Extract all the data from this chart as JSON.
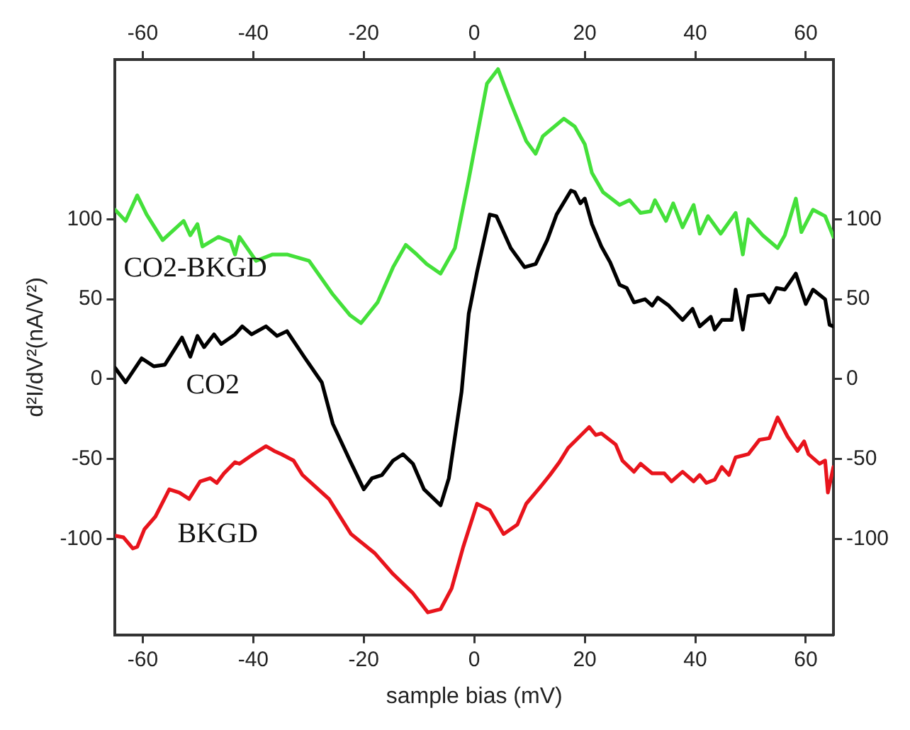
{
  "chart_data": {
    "type": "line",
    "xlabel": "sample bias (mV)",
    "ylabel": "d²I/dV²(nA/V²)",
    "xlim": [
      -65,
      65
    ],
    "xticks": [
      -60,
      -40,
      -20,
      0,
      20,
      40,
      60
    ],
    "x2lim": [
      -65,
      65
    ],
    "x2ticks": [
      -60,
      -40,
      -20,
      0,
      20,
      40,
      60
    ],
    "ylim": [
      -160,
      200
    ],
    "yticks": [
      -100,
      -50,
      0,
      50,
      100
    ],
    "y2lim": [
      -160,
      200
    ],
    "y2ticks": [
      -100,
      -50,
      0,
      50,
      100
    ],
    "grid": false,
    "legend": false,
    "marker": "none",
    "line_style": "solid",
    "series": [
      {
        "name": "CO2-BKGD",
        "color": "#44e03a",
        "x": [
          -65,
          -63.1,
          -61,
          -59.3,
          -56.4,
          -52.6,
          -51.4,
          -50.1,
          -49.2,
          -46.3,
          -44.1,
          -43.3,
          -42.5,
          -39.5,
          -36.5,
          -33.9,
          -29.9,
          -25.6,
          -22.5,
          -20.5,
          -17.5,
          -14.7,
          -12.4,
          -10.4,
          -8.6,
          -6.1,
          -3.5,
          -1,
          2.3,
          4.3,
          6.6,
          9.4,
          11.1,
          12.4,
          16.2,
          18.2,
          20,
          21.3,
          23.3,
          26.3,
          28.1,
          30.1,
          31.9,
          32.7,
          34.7,
          36,
          37.7,
          39.7,
          40.8,
          42.3,
          44.6,
          47.3,
          48.6,
          49.6,
          52.2,
          54.9,
          56.2,
          58.2,
          59.2,
          61.3,
          63.5,
          65
        ],
        "values": [
          106,
          99,
          115,
          103,
          87,
          99,
          90,
          97,
          83,
          89,
          86,
          78,
          89,
          74,
          78,
          78,
          74,
          53,
          40,
          35,
          48,
          70,
          84,
          78,
          72,
          66,
          82,
          125,
          185,
          194,
          173,
          149,
          141,
          152,
          163,
          158,
          147,
          129,
          117,
          109,
          112,
          104,
          105,
          112,
          99,
          110,
          95,
          109,
          91,
          102,
          91,
          104,
          78,
          100,
          90,
          82,
          90,
          113,
          92,
          106,
          102,
          89
        ]
      },
      {
        "name": "CO2",
        "color": "#000000",
        "x": [
          -65,
          -63.1,
          -60.2,
          -58,
          -56,
          -52.9,
          -51.4,
          -50.1,
          -48.9,
          -47.1,
          -45.8,
          -43.3,
          -42,
          -40.3,
          -37.7,
          -35.7,
          -33.9,
          -30.6,
          -27.6,
          -25.6,
          -22.5,
          -20,
          -18.5,
          -16.7,
          -14.7,
          -12.9,
          -11.1,
          -9.1,
          -6.1,
          -4.6,
          -2.3,
          -1,
          0.5,
          2.8,
          4,
          6.6,
          9.1,
          11.1,
          13.2,
          14.9,
          17.5,
          18.2,
          19.2,
          20,
          21.3,
          23,
          24.6,
          26.3,
          27.6,
          28.9,
          30.9,
          32.2,
          33.2,
          35.2,
          37.7,
          39.5,
          40.8,
          42.8,
          43.5,
          44.8,
          46.6,
          47.3,
          48.6,
          49.6,
          52.4,
          53.4,
          54.7,
          56.2,
          58.2,
          60,
          61.3,
          63.5,
          64.3,
          65
        ],
        "values": [
          7,
          -2,
          13,
          8,
          9,
          26,
          14,
          27,
          20,
          28,
          22,
          28,
          33,
          28,
          33,
          27,
          30,
          13,
          -2,
          -28,
          -51,
          -69,
          -62,
          -60,
          -51,
          -47,
          -53,
          -69,
          -79,
          -62,
          -8,
          41,
          67,
          103,
          102,
          82,
          70,
          72,
          87,
          103,
          118,
          117,
          110,
          113,
          97,
          83,
          73,
          59,
          57,
          48,
          50,
          46,
          51,
          46,
          37,
          44,
          33,
          39,
          31,
          37,
          37,
          56,
          31,
          52,
          53,
          48,
          57,
          56,
          66,
          47,
          56,
          50,
          34,
          33
        ]
      },
      {
        "name": "BKGD",
        "color": "#e8141c",
        "x": [
          -65,
          -63.5,
          -61.8,
          -61,
          -59.7,
          -57.7,
          -55.2,
          -53.4,
          -51.6,
          -49.6,
          -47.8,
          -46.6,
          -45.3,
          -43.3,
          -42.5,
          -40,
          -37.7,
          -36.2,
          -34.9,
          -32.7,
          -31.1,
          -26.3,
          -22.3,
          -18,
          -14.7,
          -11.1,
          -8.4,
          -6.1,
          -4.1,
          -2,
          0.5,
          2.8,
          5.3,
          7.8,
          9.4,
          11.6,
          13.7,
          15.4,
          17,
          20.8,
          22,
          23,
          25.6,
          26.8,
          28.9,
          30.1,
          32.2,
          34.4,
          35.7,
          37.7,
          39.7,
          40.8,
          42,
          43.5,
          44.8,
          46.1,
          47.3,
          49.6,
          51.6,
          53.4,
          54.9,
          56.7,
          58.5,
          59.7,
          60.5,
          62.5,
          63.5,
          64,
          65
        ],
        "values": [
          -98,
          -99,
          -106,
          -105,
          -94,
          -86,
          -69,
          -71,
          -75,
          -64,
          -62,
          -65,
          -59,
          -52,
          -53,
          -47,
          -42,
          -45,
          -47,
          -51,
          -60,
          -75,
          -97,
          -109,
          -122,
          -134,
          -146,
          -144,
          -131,
          -105,
          -78,
          -82,
          -97,
          -91,
          -78,
          -69,
          -60,
          -52,
          -43,
          -30,
          -35,
          -34,
          -41,
          -51,
          -58,
          -53,
          -59,
          -59,
          -64,
          -58,
          -64,
          -60,
          -65,
          -63,
          -55,
          -60,
          -49,
          -47,
          -38,
          -37,
          -24,
          -36,
          -45,
          -39,
          -47,
          -53,
          -51,
          -71,
          -55
        ]
      }
    ]
  }
}
